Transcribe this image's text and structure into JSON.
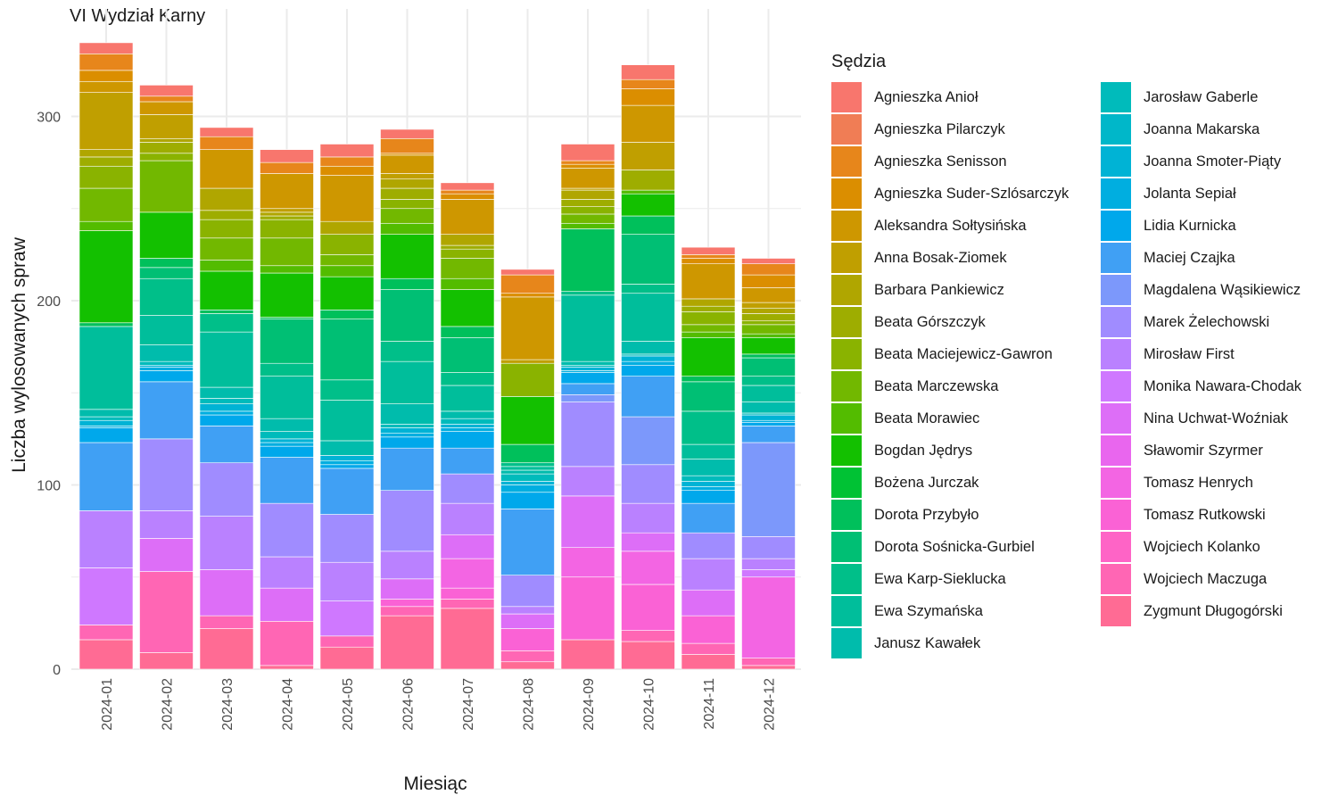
{
  "chart_data": {
    "type": "bar",
    "stacked": true,
    "title": "VI Wydział Karny",
    "xlabel": "Miesiąc",
    "ylabel": "Liczba wylosowanych spraw",
    "legend_title": "Sędzia",
    "legend_position": "right",
    "grid": true,
    "ylim": [
      0,
      345
    ],
    "yticks": [
      0,
      100,
      200,
      300
    ],
    "categories": [
      "2024-01",
      "2024-02",
      "2024-03",
      "2024-04",
      "2024-05",
      "2024-06",
      "2024-07",
      "2024-08",
      "2024-09",
      "2024-10",
      "2024-11",
      "2024-12"
    ],
    "series": [
      {
        "name": "Agnieszka Anioł",
        "color": "#F8766D",
        "values": [
          6,
          6,
          5,
          7,
          7,
          5,
          4,
          3,
          9,
          8,
          4,
          3
        ]
      },
      {
        "name": "Agnieszka Pilarczyk",
        "color": "#F07D55",
        "values": [
          0,
          0,
          0,
          0,
          0,
          0,
          0,
          0,
          0,
          0,
          0,
          0
        ]
      },
      {
        "name": "Agnieszka Senisson",
        "color": "#E7861B",
        "values": [
          9,
          3,
          7,
          6,
          5,
          8,
          2,
          10,
          2,
          5,
          2,
          6
        ]
      },
      {
        "name": "Agnieszka Suder-Szlósarczyk",
        "color": "#DB8E00",
        "values": [
          6,
          0,
          0,
          0,
          5,
          1,
          3,
          2,
          2,
          9,
          3,
          7
        ]
      },
      {
        "name": "Aleksandra Sołtysińska",
        "color": "#CE9700",
        "values": [
          6,
          7,
          21,
          19,
          25,
          10,
          19,
          34,
          11,
          20,
          19,
          8
        ]
      },
      {
        "name": "Anna Bosak-Ziomek",
        "color": "#C09F00",
        "values": [
          31,
          13,
          0,
          2,
          0,
          3,
          0,
          2,
          1,
          15,
          0,
          3
        ]
      },
      {
        "name": "Barbara Pankiewicz",
        "color": "#B0A600",
        "values": [
          4,
          2,
          12,
          2,
          7,
          5,
          6,
          0,
          5,
          0,
          4,
          3
        ]
      },
      {
        "name": "Beata Górszczyk",
        "color": "#9EAD00",
        "values": [
          5,
          6,
          5,
          2,
          0,
          6,
          2,
          0,
          4,
          11,
          3,
          4
        ]
      },
      {
        "name": "Beata Maciejewicz-Gawron",
        "color": "#8AB300",
        "values": [
          12,
          4,
          10,
          10,
          11,
          5,
          5,
          18,
          4,
          0,
          7,
          2
        ]
      },
      {
        "name": "Beata Marczewska",
        "color": "#72B800",
        "values": [
          18,
          28,
          12,
          15,
          6,
          8,
          11,
          0,
          5,
          0,
          4,
          5
        ]
      },
      {
        "name": "Beata Morawiec",
        "color": "#53BC00",
        "values": [
          5,
          0,
          6,
          4,
          6,
          6,
          6,
          0,
          3,
          2,
          3,
          2
        ]
      },
      {
        "name": "Bogdan Jędrys",
        "color": "#13C000",
        "values": [
          50,
          25,
          21,
          24,
          18,
          24,
          20,
          26,
          0,
          12,
          21,
          9
        ]
      },
      {
        "name": "Bożena Jurczak",
        "color": "#00C234",
        "values": [
          0,
          0,
          0,
          0,
          0,
          0,
          0,
          0,
          0,
          0,
          0,
          0
        ]
      },
      {
        "name": "Dorota Przybyło",
        "color": "#00C05B",
        "values": [
          2,
          5,
          2,
          1,
          5,
          6,
          6,
          10,
          34,
          10,
          3,
          2
        ]
      },
      {
        "name": "Dorota Sośnicka-Gurbiel",
        "color": "#00BF74",
        "values": [
          0,
          6,
          0,
          24,
          33,
          28,
          19,
          0,
          0,
          27,
          16,
          10
        ]
      },
      {
        "name": "Ewa Karp-Sieklucka",
        "color": "#00BF89",
        "values": [
          0,
          20,
          10,
          7,
          11,
          11,
          7,
          2,
          2,
          5,
          18,
          5
        ]
      },
      {
        "name": "Ewa Szymańska",
        "color": "#00BE9B",
        "values": [
          45,
          16,
          30,
          23,
          22,
          23,
          14,
          2,
          36,
          26,
          8,
          9
        ]
      },
      {
        "name": "Janusz Kawałek",
        "color": "#00BCAC",
        "values": [
          4,
          9,
          6,
          7,
          8,
          11,
          4,
          2,
          2,
          7,
          9,
          6
        ]
      },
      {
        "name": "Jarosław Gaberle",
        "color": "#00BBBB",
        "values": [
          2,
          2,
          3,
          4,
          0,
          2,
          3,
          4,
          1,
          1,
          3,
          1
        ]
      },
      {
        "name": "Joanna Makarska",
        "color": "#00B7C9",
        "values": [
          0,
          0,
          0,
          0,
          0,
          0,
          0,
          0,
          0,
          0,
          0,
          0
        ]
      },
      {
        "name": "Joanna Smoter-Piąty",
        "color": "#00B3D5",
        "values": [
          3,
          1,
          4,
          2,
          3,
          3,
          2,
          2,
          2,
          3,
          3,
          3
        ]
      },
      {
        "name": "Jolanta Sepiał",
        "color": "#00AEE0",
        "values": [
          1,
          2,
          2,
          2,
          2,
          2,
          2,
          4,
          1,
          2,
          2,
          1
        ]
      },
      {
        "name": "Lidia Kurnicka",
        "color": "#00A8EB",
        "values": [
          8,
          6,
          6,
          6,
          2,
          6,
          9,
          9,
          6,
          6,
          7,
          2
        ]
      },
      {
        "name": "Maciej Czajka",
        "color": "#40A0F4",
        "values": [
          37,
          31,
          20,
          25,
          25,
          23,
          14,
          36,
          6,
          22,
          16,
          9
        ]
      },
      {
        "name": "Magdalena Wąsikiewicz",
        "color": "#7C98FB",
        "values": [
          0,
          0,
          0,
          0,
          0,
          0,
          0,
          0,
          4,
          26,
          0,
          51
        ]
      },
      {
        "name": "Marek Żelechowski",
        "color": "#A08CFF",
        "values": [
          0,
          39,
          29,
          29,
          26,
          33,
          16,
          17,
          35,
          21,
          14,
          12
        ]
      },
      {
        "name": "Mirosław First",
        "color": "#BA81FF",
        "values": [
          31,
          15,
          29,
          17,
          21,
          15,
          17,
          4,
          16,
          16,
          17,
          6
        ]
      },
      {
        "name": "Monika Nawara-Chodak",
        "color": "#CF78FF",
        "values": [
          31,
          0,
          0,
          0,
          19,
          0,
          0,
          0,
          0,
          0,
          0,
          4
        ]
      },
      {
        "name": "Nina Uchwat-Woźniak",
        "color": "#DD6EF7",
        "values": [
          0,
          18,
          25,
          18,
          0,
          11,
          13,
          8,
          28,
          10,
          14,
          0
        ]
      },
      {
        "name": "Sławomir Szyrmer",
        "color": "#E966EE",
        "values": [
          0,
          0,
          0,
          0,
          0,
          0,
          0,
          0,
          0,
          0,
          0,
          0
        ]
      },
      {
        "name": "Tomasz Henrych",
        "color": "#F365E3",
        "values": [
          0,
          0,
          0,
          0,
          0,
          0,
          16,
          0,
          16,
          18,
          0,
          44
        ]
      },
      {
        "name": "Tomasz Rutkowski",
        "color": "#FA62D5",
        "values": [
          0,
          0,
          0,
          0,
          0,
          4,
          6,
          12,
          34,
          25,
          15,
          0
        ]
      },
      {
        "name": "Wojciech Kolanko",
        "color": "#FE64C6",
        "values": [
          0,
          0,
          0,
          0,
          0,
          0,
          0,
          0,
          0,
          0,
          0,
          0
        ]
      },
      {
        "name": "Wojciech Maczuga",
        "color": "#FF66B4",
        "values": [
          8,
          44,
          7,
          24,
          6,
          5,
          5,
          6,
          0,
          6,
          6,
          4
        ]
      },
      {
        "name": "Zygmunt Długogórski",
        "color": "#FF6B94",
        "values": [
          16,
          9,
          22,
          2,
          12,
          29,
          33,
          4,
          16,
          15,
          8,
          2
        ]
      }
    ]
  }
}
